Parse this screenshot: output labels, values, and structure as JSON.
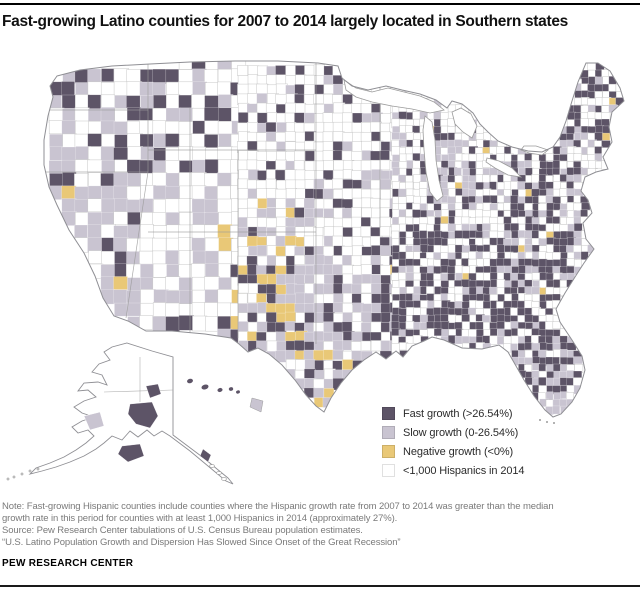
{
  "header": {
    "title": "Fast-growing Latino counties for 2007 to 2014 largely located in Southern states"
  },
  "map": {
    "colors": {
      "fast": "#5d5467",
      "slow": "#c9c4d1",
      "negative": "#e9c877",
      "none": "#ffffff",
      "county_border": "#c8c8c8",
      "state_border": "#9b9b9b",
      "outline": "#8f8f94"
    },
    "legend": [
      {
        "key": "fast",
        "label": "Fast growth (>26.54%)"
      },
      {
        "key": "slow",
        "label": "Slow growth (0-26.54%)"
      },
      {
        "key": "negative",
        "label": "Negative growth (<0%)"
      },
      {
        "key": "none",
        "label": "<1,000 Hispanics in 2014"
      }
    ]
  },
  "footer": {
    "note": "Note: Fast-growing Hispanic counties include counties where the Hispanic growth rate from 2007 to 2014 was greater than the median\ngrowth rate in this period for counties with at least 1,000 Hispanics in 2014 (approximately 27%).",
    "source": "Source: Pew Research Center tabulations of U.S. Census Bureau population estimates.",
    "quote": "“U.S. Latino Population Growth and Dispersion Has Slowed Since Onset of the Great Recession”",
    "brand": "PEW RESEARCH CENTER"
  },
  "chart_data": {
    "type": "choropleth_map",
    "title": "Fast-growing Latino counties for 2007 to 2014 largely located in Southern states",
    "geography": "U.S. counties, all 50 states (Alaska and Hawaii insets)",
    "period": "2007 to 2014",
    "categories": [
      "Fast growth (>26.54%)",
      "Slow growth (0-26.54%)",
      "Negative growth (<0%)",
      "<1,000 Hispanics in 2014"
    ],
    "category_colors": {
      "Fast growth (>26.54%)": "#5d5467",
      "Slow growth (0-26.54%)": "#c9c4d1",
      "Negative growth (<0%)": "#e9c877",
      "<1,000 Hispanics in 2014": "#ffffff"
    },
    "legend_position": "bottom-right",
    "reading": "Fast-growth (dark) counties cluster in the South, along the East Coast, in Florida and the Pacific Northwest; slow-growth (light) counties dominate California, the Southwest, Texas and Michigan; negative-growth (yellow) counties cluster in Colorado/New Mexico and along the southern border; white counties (<1,000 Hispanics) dominate the Great Plains and Midwest."
  }
}
